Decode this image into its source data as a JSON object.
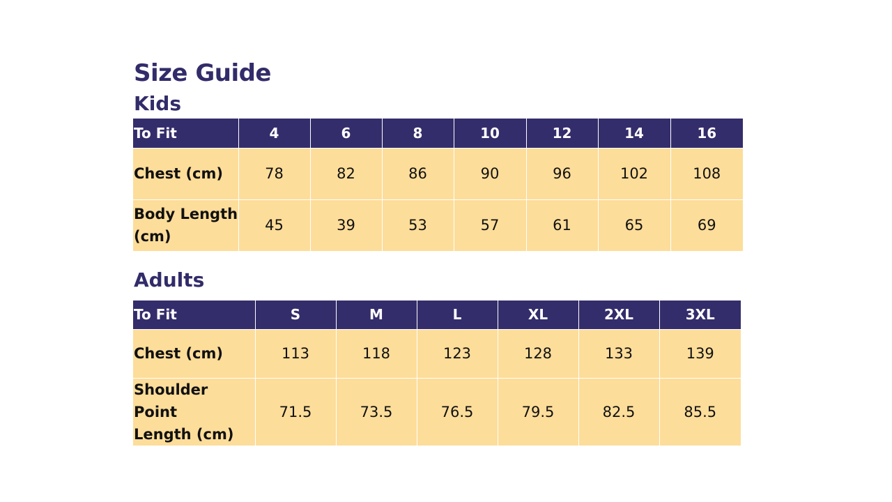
{
  "title": "Size Guide",
  "colors": {
    "heading": "#322c6a",
    "header_bg": "#342d6b",
    "cell_bg": "#fddd9a"
  },
  "kids": {
    "heading": "Kids",
    "header": [
      "To Fit",
      "4",
      "6",
      "8",
      "10",
      "12",
      "14",
      "16"
    ],
    "rows": [
      {
        "label": "Chest (cm)",
        "values": [
          "78",
          "82",
          "86",
          "90",
          "96",
          "102",
          "108"
        ]
      },
      {
        "label_lines": [
          "Body Length",
          "(cm)"
        ],
        "values": [
          "45",
          "39",
          "53",
          "57",
          "61",
          "65",
          "69"
        ]
      }
    ]
  },
  "adults": {
    "heading": "Adults",
    "header": [
      "To Fit",
      "S",
      "M",
      "L",
      "XL",
      "2XL",
      "3XL"
    ],
    "rows": [
      {
        "label": "Chest (cm)",
        "values": [
          "113",
          "118",
          "123",
          "128",
          "133",
          "139"
        ]
      },
      {
        "label_lines": [
          "Shoulder Point",
          "Length (cm)"
        ],
        "values": [
          "71.5",
          "73.5",
          "76.5",
          "79.5",
          "82.5",
          "85.5"
        ]
      }
    ]
  }
}
